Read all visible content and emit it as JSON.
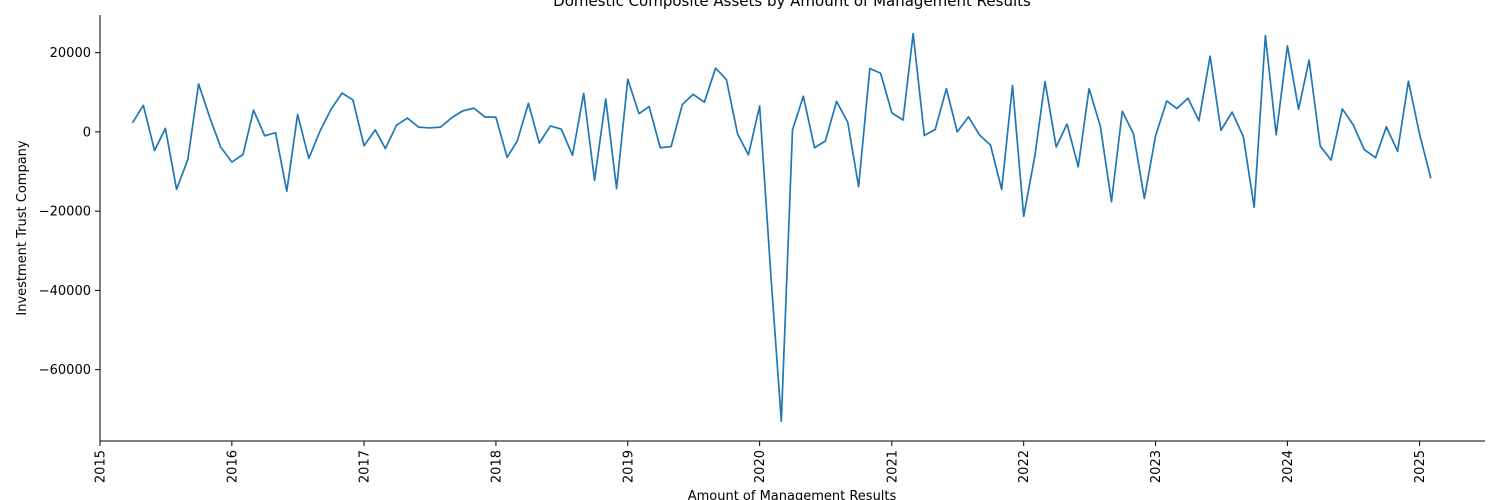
{
  "chart_data": {
    "type": "line",
    "title": "Domestic Composite Assets by Amount of Management Results",
    "xlabel": "Amount of Management Results",
    "ylabel": "Investment Trust Company",
    "xlim": [
      "2015-01-01",
      "2025-07-01"
    ],
    "ylim": [
      -78000,
      29500
    ],
    "yticks": [
      20000,
      0,
      -20000,
      -40000,
      -60000
    ],
    "ytick_labels": [
      "20000",
      "0",
      "−20000",
      "−40000",
      "−60000"
    ],
    "xticks": [
      "2015-01-01",
      "2016-01-01",
      "2017-01-01",
      "2018-01-01",
      "2019-01-01",
      "2020-01-01",
      "2021-01-01",
      "2022-01-01",
      "2023-01-01",
      "2024-01-01",
      "2025-01-01"
    ],
    "xtick_labels": [
      "2015",
      "2016",
      "2017",
      "2018",
      "2019",
      "2020",
      "2021",
      "2022",
      "2023",
      "2024",
      "2025"
    ],
    "grid": false,
    "line_color": "#1f77b4",
    "series": [
      {
        "x": [
          "2015-04-01",
          "2015-05-01",
          "2015-06-01",
          "2015-07-01",
          "2015-08-01",
          "2015-09-01",
          "2015-10-01",
          "2015-11-01",
          "2015-12-01",
          "2016-01-01",
          "2016-02-01",
          "2016-03-01",
          "2016-04-01",
          "2016-05-01",
          "2016-06-01",
          "2016-07-01",
          "2016-08-01",
          "2016-09-01",
          "2016-10-01",
          "2016-11-01",
          "2016-12-01",
          "2017-01-01",
          "2017-02-01",
          "2017-03-01",
          "2017-04-01",
          "2017-05-01",
          "2017-06-01",
          "2017-07-01",
          "2017-08-01",
          "2017-09-01",
          "2017-10-01",
          "2017-11-01",
          "2017-12-01",
          "2018-01-01",
          "2018-02-01",
          "2018-03-01",
          "2018-04-01",
          "2018-05-01",
          "2018-06-01",
          "2018-07-01",
          "2018-08-01",
          "2018-09-01",
          "2018-10-01",
          "2018-11-01",
          "2018-12-01",
          "2019-01-01",
          "2019-02-01",
          "2019-03-01",
          "2019-04-01",
          "2019-05-01",
          "2019-06-01",
          "2019-07-01",
          "2019-08-01",
          "2019-09-01",
          "2019-10-01",
          "2019-11-01",
          "2019-12-01",
          "2020-01-01",
          "2020-02-01",
          "2020-03-01",
          "2020-04-01",
          "2020-05-01",
          "2020-06-01",
          "2020-07-01",
          "2020-08-01",
          "2020-09-01",
          "2020-10-01",
          "2020-11-01",
          "2020-12-01",
          "2021-01-01",
          "2021-02-01",
          "2021-03-01",
          "2021-04-01",
          "2021-05-01",
          "2021-06-01",
          "2021-07-01",
          "2021-08-01",
          "2021-09-01",
          "2021-10-01",
          "2021-11-01",
          "2021-12-01",
          "2022-01-01",
          "2022-02-01",
          "2022-03-01",
          "2022-04-01",
          "2022-05-01",
          "2022-06-01",
          "2022-07-01",
          "2022-08-01",
          "2022-09-01",
          "2022-10-01",
          "2022-11-01",
          "2022-12-01",
          "2023-01-01",
          "2023-02-01",
          "2023-03-01",
          "2023-04-01",
          "2023-05-01",
          "2023-06-01",
          "2023-07-01",
          "2023-08-01",
          "2023-09-01",
          "2023-10-01",
          "2023-11-01",
          "2023-12-01",
          "2024-01-01",
          "2024-02-01",
          "2024-03-01",
          "2024-04-01",
          "2024-05-01",
          "2024-06-01",
          "2024-07-01",
          "2024-08-01",
          "2024-09-01",
          "2024-10-01",
          "2024-11-01",
          "2024-12-01",
          "2025-01-01",
          "2025-02-01"
        ],
        "values": [
          2300,
          6700,
          -4700,
          900,
          -14500,
          -7000,
          12100,
          3600,
          -3800,
          -7600,
          -5700,
          5500,
          -1000,
          -200,
          -15000,
          4400,
          -6700,
          200,
          5600,
          9800,
          8100,
          -3500,
          500,
          -4200,
          1700,
          3500,
          1200,
          1000,
          1200,
          3600,
          5300,
          6000,
          3800,
          3700,
          -6400,
          -2300,
          7200,
          -2800,
          1500,
          700,
          -5900,
          9700,
          -12200,
          8300,
          -14300,
          13300,
          4600,
          6400,
          -4000,
          -3700,
          6900,
          9500,
          7500,
          16100,
          13200,
          -500,
          -5800,
          6500,
          -36000,
          -73000,
          500,
          9000,
          -4000,
          -2300,
          7700,
          2400,
          -13800,
          16000,
          14800,
          4800,
          3000,
          24800,
          -900,
          600,
          10900,
          0,
          3800,
          -800,
          -3300,
          -14500,
          11700,
          -21300,
          -6000,
          12700,
          -3800,
          2000,
          -8800,
          10900,
          1500,
          -17600,
          5200,
          -500,
          -16800,
          -1000,
          7800,
          5900,
          8500,
          2800,
          19100,
          400,
          5000,
          -1200,
          -19000,
          24300,
          -700,
          21700,
          5700,
          18100,
          -3600,
          -7100,
          5800,
          1800,
          -4500,
          -6500,
          1300,
          -4900,
          12800,
          -600,
          -11700
        ]
      }
    ]
  }
}
